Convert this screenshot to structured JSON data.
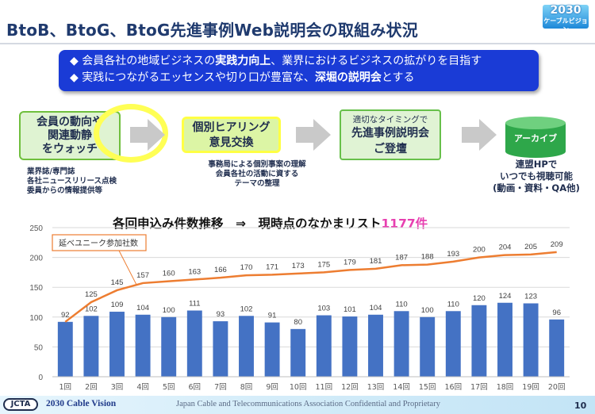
{
  "header": {
    "title": "BtoB、BtoG、BtoG先進事例Web説明会の取組み状況",
    "logo_big": "2030",
    "logo_small": "ケーブルビジョン"
  },
  "banner": {
    "line1_pre": "◆ 会員各社の地域ビジネスの",
    "line1_bold": "実践力向上",
    "line1_post": "、業界におけるビジネスの拡がりを目指す",
    "line2_pre": "◆ 実践につながるエッセンスや切り口が豊富な、",
    "line2_bold": "深堀の説明会",
    "line2_post": "とする"
  },
  "flow": {
    "step1_lines": [
      "会員の動向や",
      "関連動静",
      "をウォッチ"
    ],
    "step1_notes": [
      "業界誌/専門誌",
      "各社ニュースリリース点検",
      "委員からの情報提供等"
    ],
    "step2_lines": [
      "個別ヒアリング",
      "意見交換"
    ],
    "step2_notes": [
      "事務局による個別事案の理解",
      "会員各社の活動に資する",
      "テーマの整理"
    ],
    "step3_small": "適切なタイミングで",
    "step3_lines": [
      "先進事例説明会",
      "ご登壇"
    ],
    "step4_label": "アーカイブ",
    "step4_notes": [
      "連盟HPで",
      "いつでも視聴可能",
      "(動画・資料・QA他)"
    ]
  },
  "chart_heading": {
    "prefix": "各回申込み件数推移　⇒　現時点のなかまリスト",
    "highlight": "1177件"
  },
  "chart_data": {
    "type": "bar",
    "categories": [
      "1回",
      "2回",
      "3回",
      "4回",
      "5回",
      "6回",
      "7回",
      "8回",
      "9回",
      "10回",
      "11回",
      "12回",
      "13回",
      "14回",
      "15回",
      "16回",
      "17回",
      "18回",
      "19回",
      "20回"
    ],
    "series": [
      {
        "values": [
          92,
          102,
          109,
          104,
          100,
          111,
          93,
          102,
          91,
          80,
          103,
          101,
          104,
          110,
          100,
          110,
          120,
          124,
          123,
          96
        ],
        "color": "#4472c4",
        "type": "bar"
      },
      {
        "name": "延べユニーク参加社数",
        "values": [
          92,
          125,
          145,
          157,
          160,
          163,
          166,
          170,
          171,
          173,
          175,
          179,
          181,
          187,
          188,
          193,
          200,
          204,
          205,
          209
        ],
        "color": "#ed7d31",
        "type": "line"
      }
    ],
    "ylim": [
      0,
      250
    ],
    "yticks": [
      0,
      50,
      100,
      150,
      200,
      250
    ],
    "grid": true
  },
  "footer": {
    "logo": "JCTA",
    "left": "2030 Cable Vision",
    "center": "Japan Cable and Telecommunications Association Confidential and Proprietary",
    "page": "10"
  }
}
